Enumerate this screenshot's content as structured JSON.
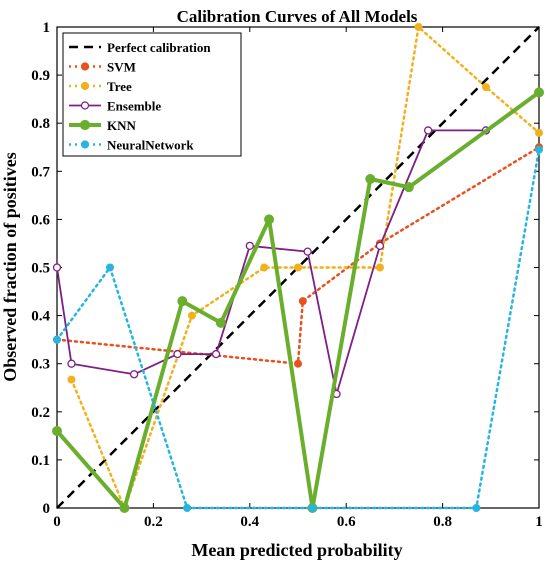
{
  "chart_data": {
    "type": "line",
    "title": "Calibration Curves of All Models",
    "xlabel": "Mean predicted probability",
    "ylabel": "Observed fraction of positives",
    "xlim": [
      0,
      1
    ],
    "ylim": [
      0,
      1
    ],
    "xticks": [
      "0",
      "0.2",
      "0.4",
      "0.6",
      "0.8",
      "1"
    ],
    "yticks": [
      "0",
      "0.1",
      "0.2",
      "0.3",
      "0.4",
      "0.5",
      "0.6",
      "0.7",
      "0.8",
      "0.9",
      "1"
    ],
    "grid": false,
    "legend_position": "top-left",
    "reference": {
      "name": "Perfect calibration",
      "x": [
        0,
        1
      ],
      "y": [
        0,
        1
      ],
      "color": "#000000",
      "style": "dashed"
    },
    "series": [
      {
        "name": "SVM",
        "color": "#E8501E",
        "style": "dotted",
        "marker": "filled-circle",
        "x": [
          0.0,
          0.5,
          0.51,
          0.67,
          1.0
        ],
        "y": [
          0.35,
          0.3,
          0.43,
          0.55,
          0.75
        ]
      },
      {
        "name": "Tree",
        "color": "#F2B01C",
        "style": "dotted",
        "marker": "filled-circle",
        "x": [
          0.03,
          0.14,
          0.28,
          0.43,
          0.5,
          0.67,
          0.75,
          0.89,
          1.0
        ],
        "y": [
          0.267,
          0.0,
          0.4,
          0.5,
          0.5,
          0.5,
          1.0,
          0.875,
          0.78
        ]
      },
      {
        "name": "Ensemble",
        "color": "#7E1F86",
        "style": "solid",
        "marker": "open-circle",
        "x": [
          0.0,
          0.03,
          0.16,
          0.25,
          0.33,
          0.4,
          0.52,
          0.58,
          0.67,
          0.77,
          0.89
        ],
        "y": [
          0.5,
          0.3,
          0.278,
          0.32,
          0.32,
          0.545,
          0.533,
          0.237,
          0.545,
          0.785,
          0.785
        ]
      },
      {
        "name": "KNN",
        "color": "#6AAE2E",
        "style": "solid-thick",
        "marker": "filled-circle",
        "x": [
          0.0,
          0.14,
          0.26,
          0.34,
          0.44,
          0.53,
          0.65,
          0.73,
          1.0
        ],
        "y": [
          0.16,
          0.0,
          0.43,
          0.385,
          0.6,
          0.0,
          0.684,
          0.667,
          0.864
        ]
      },
      {
        "name": "NeuralNetwork",
        "color": "#26B5E0",
        "style": "dotted",
        "marker": "filled-circle",
        "x": [
          0.0,
          0.11,
          0.27,
          0.53,
          0.87,
          1.0
        ],
        "y": [
          0.35,
          0.5,
          0.0,
          0.0,
          0.0,
          0.745
        ]
      }
    ]
  }
}
